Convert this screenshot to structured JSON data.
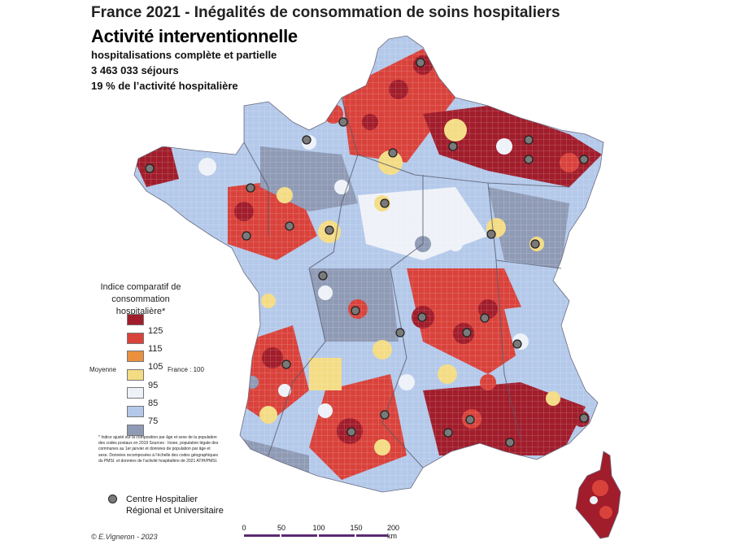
{
  "header": {
    "main_title": "France 2021 - Inégalités de consommation de soins hospitaliers",
    "sub_title": "Activité interventionnelle",
    "line1": "hospitalisations complète et partielle",
    "line2": "3 463 033 séjours",
    "line3": "19 % de l’activité hospitalière"
  },
  "legend": {
    "title": "Indice comparatif de consommation hospitalière*",
    "classes": [
      {
        "color": "#a11d2b",
        "upper": null
      },
      {
        "color": "#d9423b",
        "upper": 125
      },
      {
        "color": "#e9913e",
        "upper": 115
      },
      {
        "color": "#f4dc85",
        "upper": 105
      },
      {
        "color": "#eef2f8",
        "upper": 95
      },
      {
        "color": "#b4c9ea",
        "upper": 85
      },
      {
        "color": "#8f9ab5",
        "upper": 75
      }
    ],
    "ticks": [
      "125",
      "115",
      "105",
      "95",
      "85",
      "75"
    ],
    "moyenne_label": "Moyenne",
    "reference_label": "France : 100"
  },
  "footnote": "* Indice ajusté sur la composition par âge et sexe de la population des codes postaux en 2019 Sources : Insee, population légale des communes au 1er janvier et données de population par âge et sexe. Données recomposées à l’échelle des codes géographiques du PMSI. et données de l’activité hospitalière de 2021 ATIH/PMSI.",
  "chu_legend": {
    "label_line1": "Centre Hospitalier",
    "label_line2": "Régional et Universitaire"
  },
  "scale": {
    "ticks": [
      "0",
      "50",
      "100",
      "150",
      "200 km"
    ]
  },
  "credit": "© E.Vigneron - 2023",
  "colors": {
    "very_high": "#a11d2b",
    "high": "#d9423b",
    "above": "#e9913e",
    "slightly_above": "#f4dc85",
    "average": "#eef2f8",
    "below": "#b4c9ea",
    "very_low": "#8f9ab5",
    "scale_bar": "#5a2a75"
  }
}
